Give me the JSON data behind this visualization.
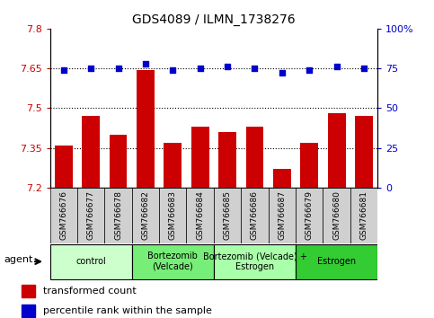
{
  "title": "GDS4089 / ILMN_1738276",
  "samples": [
    "GSM766676",
    "GSM766677",
    "GSM766678",
    "GSM766682",
    "GSM766683",
    "GSM766684",
    "GSM766685",
    "GSM766686",
    "GSM766687",
    "GSM766679",
    "GSM766680",
    "GSM766681"
  ],
  "bar_values": [
    7.36,
    7.47,
    7.4,
    7.645,
    7.37,
    7.43,
    7.41,
    7.43,
    7.27,
    7.37,
    7.48,
    7.47
  ],
  "percentile_values": [
    74,
    75,
    75,
    78,
    74,
    75,
    76,
    75,
    72,
    74,
    76,
    75
  ],
  "ylim": [
    7.2,
    7.8
  ],
  "yticks": [
    7.2,
    7.35,
    7.5,
    7.65,
    7.8
  ],
  "ytick_labels": [
    "7.2",
    "7.35",
    "7.5",
    "7.65",
    "7.8"
  ],
  "y2lim": [
    0,
    100
  ],
  "y2ticks": [
    0,
    25,
    50,
    75,
    100
  ],
  "y2tick_labels": [
    "0",
    "25",
    "50",
    "75",
    "100%"
  ],
  "bar_color": "#cc0000",
  "dot_color": "#0000cc",
  "bg_color": "#ffffff",
  "tick_bg_color": "#d0d0d0",
  "groups": [
    {
      "label": "control",
      "start": 0,
      "end": 3,
      "color": "#ccffcc"
    },
    {
      "label": "Bortezomib\n(Velcade)",
      "start": 3,
      "end": 6,
      "color": "#77ee77"
    },
    {
      "label": "Bortezomib (Velcade) +\nEstrogen",
      "start": 6,
      "end": 9,
      "color": "#aaffaa"
    },
    {
      "label": "Estrogen",
      "start": 9,
      "end": 12,
      "color": "#33cc33"
    }
  ],
  "xlabel_agent": "agent",
  "legend_bar_label": "transformed count",
  "legend_dot_label": "percentile rank within the sample",
  "ytick_color": "#cc0000",
  "y2tick_color": "#0000cc",
  "bar_bottom": 7.2
}
